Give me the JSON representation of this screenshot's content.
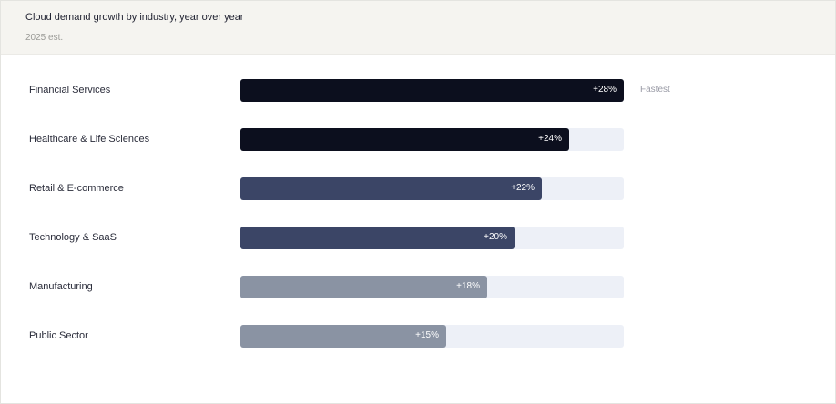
{
  "header": {
    "title": "Cloud demand growth by industry, year over year",
    "subtitle": "2025 est."
  },
  "colors": {
    "dark": "#0c0f1e",
    "medium": "#3b4566",
    "light": "#8a93a3",
    "track": "#edf0f7"
  },
  "chart_data": {
    "type": "bar",
    "orientation": "horizontal",
    "title": "Cloud demand growth by industry, year over year",
    "subtitle": "2025 est.",
    "xlim": [
      0,
      28
    ],
    "categories": [
      "Financial Services",
      "Healthcare & Life Sciences",
      "Retail & E-commerce",
      "Technology & SaaS",
      "Manufacturing",
      "Public Sector"
    ],
    "values": [
      28,
      24,
      22,
      20,
      18,
      15
    ],
    "value_labels": [
      "+28%",
      "+24%",
      "+22%",
      "+20%",
      "+18%",
      "+15%"
    ],
    "bar_colors": [
      "#0c0f1e",
      "#0c0f1e",
      "#3b4566",
      "#3b4566",
      "#8a93a3",
      "#8a93a3"
    ],
    "annotations": [
      {
        "category": "Financial Services",
        "text": "Fastest"
      }
    ]
  }
}
